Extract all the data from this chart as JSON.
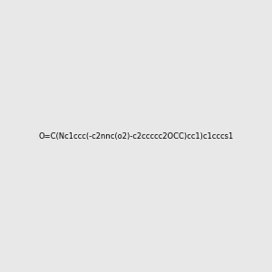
{
  "smiles": "O=C(Nc1ccc(-c2nnc(o2)-c2ccccc2OCC)cc1)c1cccs1",
  "image_size": 300,
  "background_color": "#e8e8e8",
  "bond_color": "#000000",
  "atom_colors": {
    "N": "#0000ff",
    "O": "#ff0000",
    "S": "#cccc00"
  }
}
